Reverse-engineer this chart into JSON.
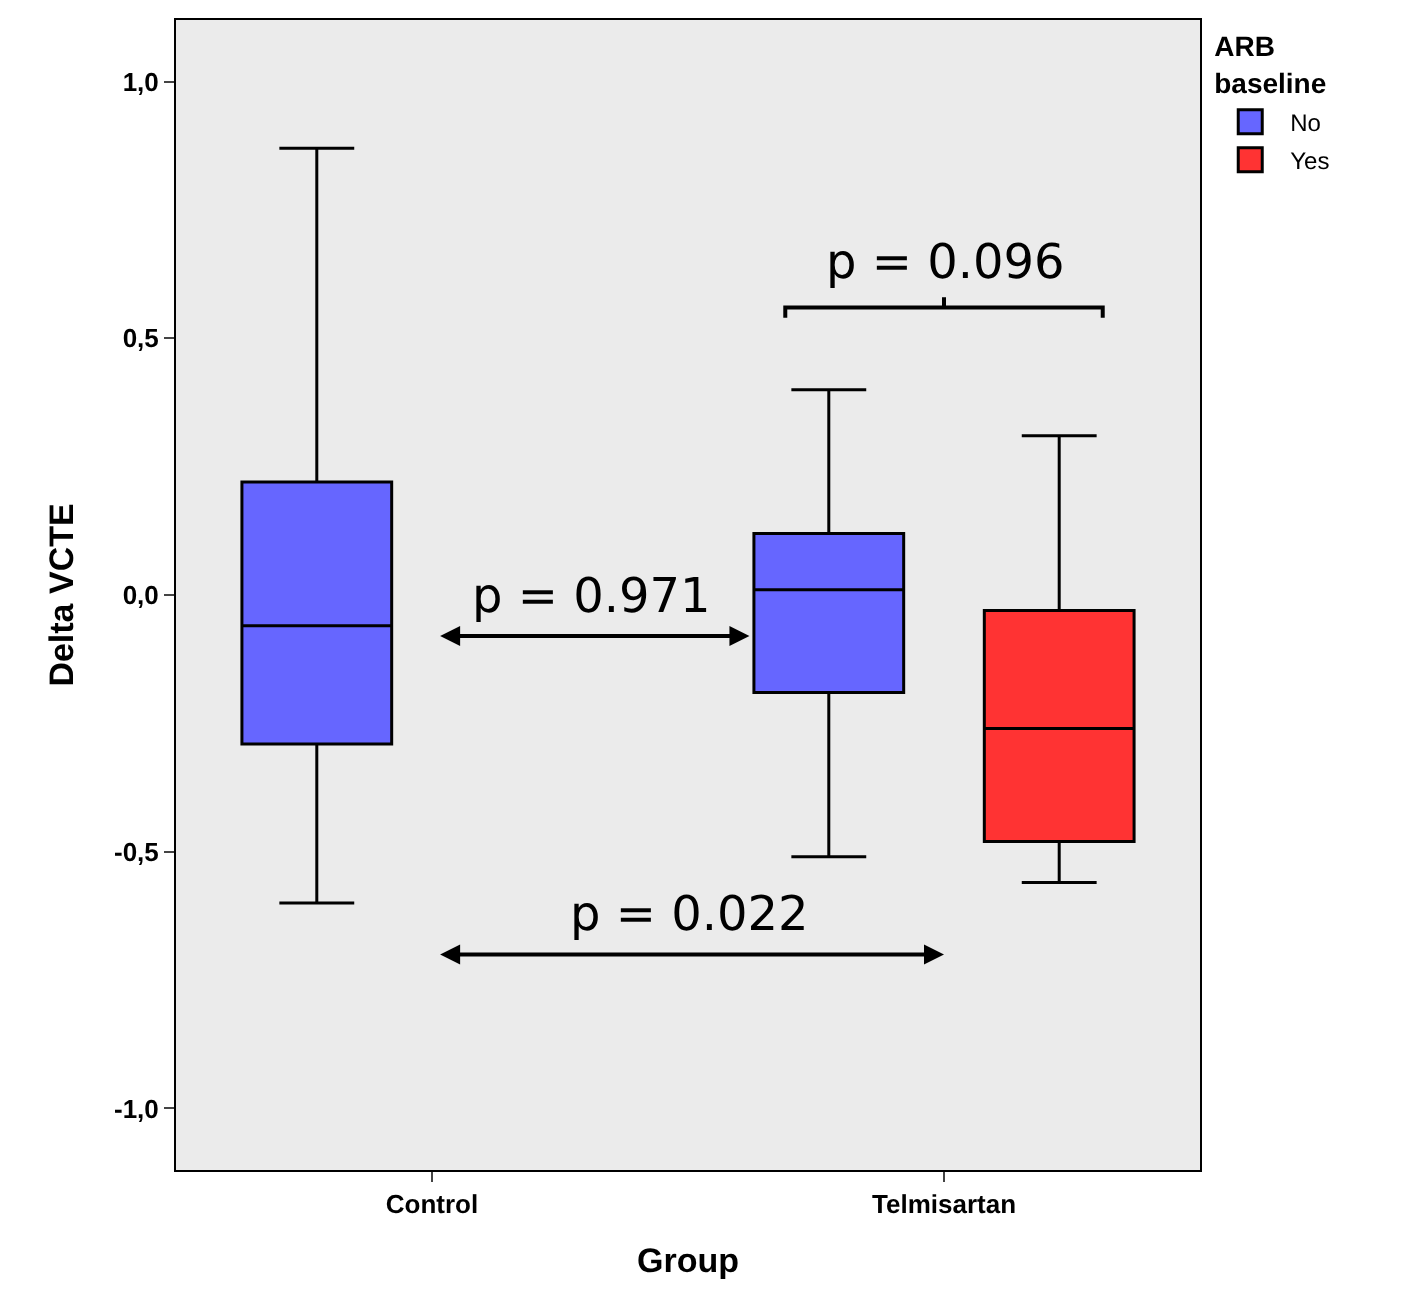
{
  "chart_data": {
    "type": "box",
    "xlabel": "Group",
    "ylabel": "Delta VCTE",
    "legend_title": "ARB baseline",
    "legend": "right",
    "grid": false,
    "categories": [
      "Control",
      "Telmisartan"
    ],
    "ylim": [
      -1.12,
      1.12
    ],
    "yticks": [
      {
        "value": -1,
        "label": "-1,0"
      },
      {
        "value": -0.5,
        "label": "-0,5"
      },
      {
        "value": 0,
        "label": "0,0"
      },
      {
        "value": 0.5,
        "label": "0,5"
      },
      {
        "value": 1,
        "label": "1,0"
      }
    ],
    "series": [
      {
        "name": "No",
        "color": "#6666ff",
        "boxes": [
          {
            "low": -0.6,
            "q1": -0.29,
            "median": -0.06,
            "q3": 0.22,
            "high": 0.87
          },
          {
            "low": -0.51,
            "q1": -0.19,
            "median": 0.01,
            "q3": 0.12,
            "high": 0.4
          }
        ]
      },
      {
        "name": "Yes",
        "color": "#ff3333",
        "boxes": [
          null,
          {
            "low": -0.56,
            "q1": -0.48,
            "median": -0.26,
            "q3": -0.03,
            "high": 0.31
          }
        ]
      }
    ],
    "annotations": [
      "p = 0.971",
      "p = 0.022",
      "p = 0.096"
    ]
  }
}
